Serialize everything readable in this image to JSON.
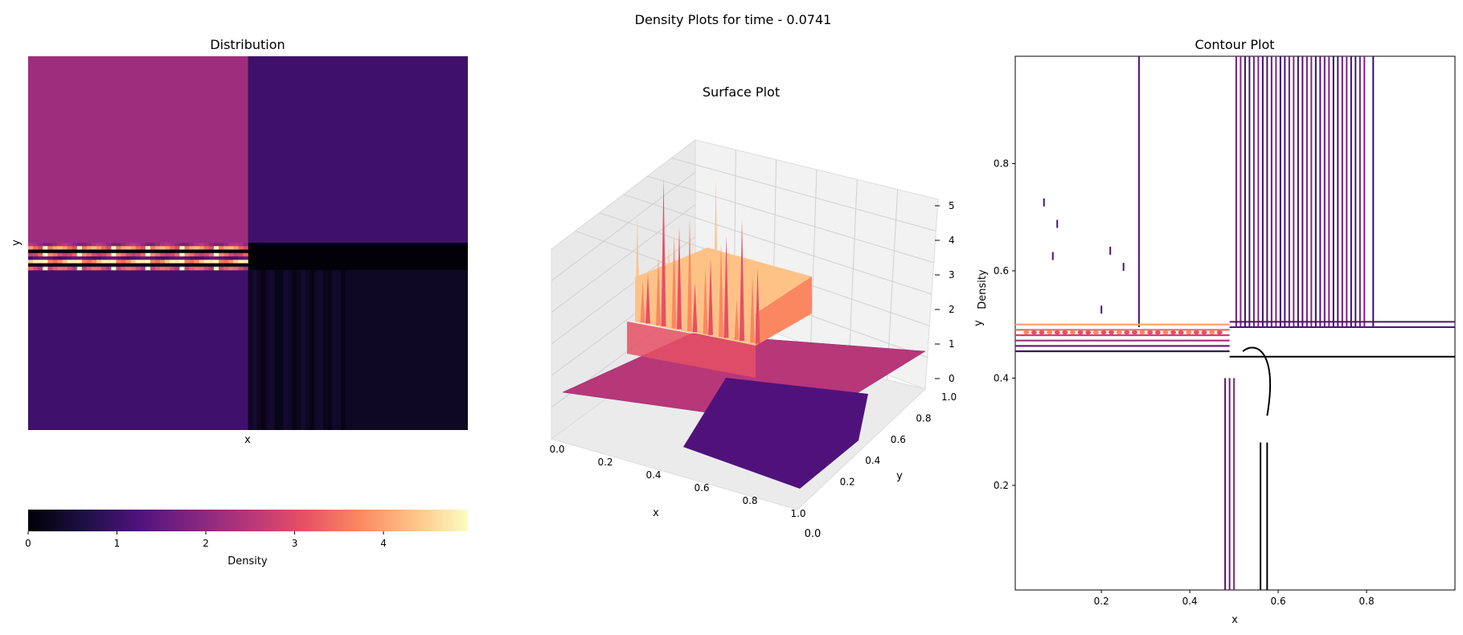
{
  "figure": {
    "suptitle": "Density Plots for time - 0.0741"
  },
  "palette": {
    "magma_stops": [
      "#000004",
      "#1c1044",
      "#4f127b",
      "#812581",
      "#b5367a",
      "#e55064",
      "#fb8761",
      "#fec287",
      "#fcfdbf"
    ]
  },
  "chart_data": [
    {
      "type": "heatmap",
      "title": "Distribution",
      "xlabel": "x",
      "ylabel": "y",
      "colormap": "magma",
      "colorbar": {
        "label": "Density",
        "ticks": [
          0,
          1,
          2,
          3,
          4
        ],
        "range": [
          0,
          4.95
        ]
      },
      "regions": [
        {
          "name": "upper-left",
          "value": 2.2
        },
        {
          "name": "upper-right",
          "value": 1.05
        },
        {
          "name": "lower-left",
          "value": 1.05
        },
        {
          "name": "lower-right",
          "value": 0.3
        },
        {
          "name": "center-band-right",
          "value": 0.05
        }
      ],
      "interface_band_values": [
        2.5,
        4.2,
        0.0,
        3.8,
        1.5,
        4.9,
        0.2,
        3.5
      ]
    },
    {
      "type": "surface",
      "title": "Surface Plot",
      "xlabel": "x",
      "ylabel": "y",
      "zlabel": "",
      "xticks": [
        0.0,
        0.2,
        0.4,
        0.6,
        0.8,
        1.0
      ],
      "yticks": [
        0.2,
        0.4,
        0.6,
        0.8,
        1.0
      ],
      "zticks": [
        0,
        1,
        2,
        3,
        4,
        5
      ],
      "extra_tick_labels": [
        "0.0"
      ],
      "colormap": "magma",
      "grid": true
    },
    {
      "type": "contour",
      "title": "Contour Plot",
      "xlabel": "x",
      "ylabel": "y",
      "extra_label": "Density",
      "xticks": [
        0.2,
        0.4,
        0.6,
        0.8
      ],
      "yticks": [
        0.2,
        0.4,
        0.6,
        0.8
      ],
      "xlim": [
        0.005,
        1.0
      ],
      "ylim": [
        0.005,
        1.0
      ],
      "vertical_line_x": [
        0.285,
        0.505,
        0.515,
        0.525,
        0.535,
        0.545,
        0.555,
        0.565,
        0.575,
        0.585,
        0.595,
        0.605,
        0.615,
        0.625,
        0.635,
        0.645,
        0.655,
        0.665,
        0.675,
        0.685,
        0.695,
        0.705,
        0.715,
        0.725,
        0.735,
        0.745,
        0.755,
        0.765,
        0.775,
        0.785,
        0.795,
        0.815
      ],
      "horizontal_line_y": [
        0.505,
        0.495,
        0.44
      ],
      "band_y": [
        0.45,
        0.5
      ],
      "band_x": [
        0.005,
        0.49
      ]
    }
  ]
}
